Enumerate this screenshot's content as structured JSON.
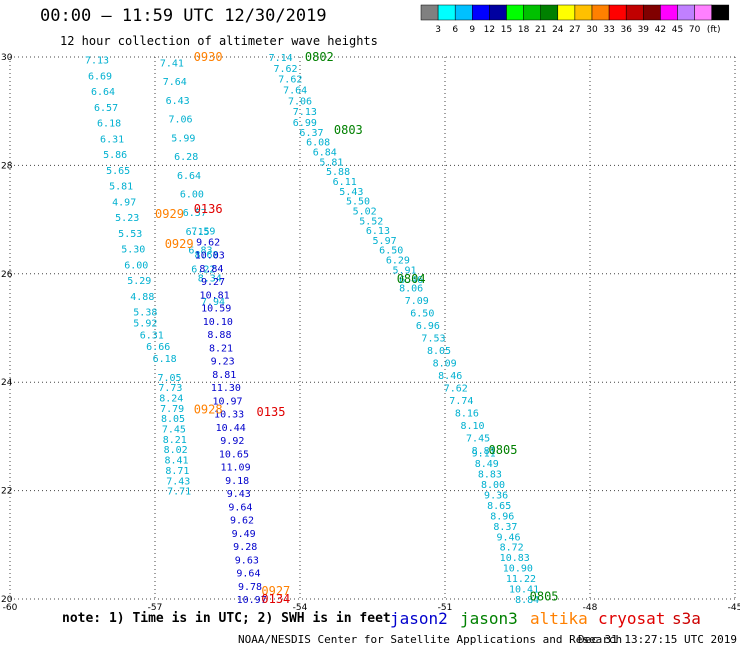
{
  "title": "00:00 – 11:59 UTC 12/30/2019",
  "subtitle": "12 hour collection of altimeter wave heights",
  "colorbar": {
    "colors": [
      "#808080",
      "#00ffff",
      "#00c0ff",
      "#0000ff",
      "#0000a0",
      "#00ff00",
      "#00c000",
      "#008000",
      "#ffff00",
      "#ffc000",
      "#ff8000",
      "#ff0000",
      "#c00000",
      "#800000",
      "#ff00ff",
      "#c080ff",
      "#ff80ff",
      "#000000"
    ],
    "labels": [
      "3",
      "6",
      "9",
      "12",
      "15",
      "18",
      "21",
      "24",
      "27",
      "30",
      "33",
      "36",
      "39",
      "42",
      "45",
      "70"
    ],
    "unit": "(ft)"
  },
  "note": "note: 1) Time is in UTC; 2) SWH is in feet",
  "legend": [
    {
      "name": "jason2",
      "color": "#0000cc"
    },
    {
      "name": "jason3",
      "color": "#008000"
    },
    {
      "name": "altika",
      "color": "#ff8000"
    },
    {
      "name": "cryosat",
      "color": "#e00000"
    },
    {
      "name": "s3a",
      "color": "#cc0000"
    }
  ],
  "credit": "NOAA/NESDIS Center for Satellite Applications and Research",
  "timestamp": "Dec 31 13:27:15 UTC 2019",
  "chart_data": {
    "type": "scatter",
    "xlim": [
      -60,
      -45
    ],
    "ylim": [
      20,
      30
    ],
    "xticks": [
      "-60",
      "-57",
      "-54",
      "-51",
      "-48",
      "-45"
    ],
    "yticks": [
      "20",
      "22",
      "24",
      "26",
      "28",
      "30"
    ],
    "grid": true,
    "time_labels": [
      {
        "x": -55.9,
        "y": 30.0,
        "text": "0930",
        "color": "#ff8000"
      },
      {
        "x": -56.7,
        "y": 27.1,
        "text": "0929",
        "color": "#ff8000"
      },
      {
        "x": -56.5,
        "y": 26.55,
        "text": "0929",
        "color": "#ff8000"
      },
      {
        "x": -55.9,
        "y": 23.5,
        "text": "0928",
        "color": "#ff8000"
      },
      {
        "x": -54.5,
        "y": 20.15,
        "text": "0927",
        "color": "#ff8000"
      },
      {
        "x": -55.9,
        "y": 27.2,
        "text": "0136",
        "color": "#e00000"
      },
      {
        "x": -54.6,
        "y": 23.45,
        "text": "0135",
        "color": "#e00000"
      },
      {
        "x": -54.5,
        "y": 20.0,
        "text": "0134",
        "color": "#e00000"
      },
      {
        "x": -53.6,
        "y": 30.0,
        "text": "0802",
        "color": "#008000"
      },
      {
        "x": -53.0,
        "y": 28.65,
        "text": "0803",
        "color": "#008000"
      },
      {
        "x": -51.7,
        "y": 25.9,
        "text": "0804",
        "color": "#008000"
      },
      {
        "x": -49.8,
        "y": 22.75,
        "text": "0805",
        "color": "#008000"
      },
      {
        "x": -48.95,
        "y": 20.05,
        "text": "0805",
        "color": "#008000"
      }
    ],
    "tracks": [
      {
        "x0": -58.2,
        "x1": -57.2,
        "y0": 29.95,
        "y1": 25.3,
        "color": "#00b0d0",
        "values": [
          "7.13",
          "6.69",
          "6.64",
          "6.57",
          "6.18",
          "6.31",
          "5.86",
          "5.65",
          "5.81",
          "4.97",
          "5.23",
          "5.53",
          "5.30",
          "6.00",
          "5.29",
          "4.88",
          "5.38"
        ]
      },
      {
        "x0": -57.2,
        "x1": -56.8,
        "y0": 25.1,
        "y1": 24.45,
        "color": "#00b0d0",
        "values": [
          "5.92",
          "6.31",
          "6.66",
          "6.18"
        ]
      },
      {
        "x0": -56.7,
        "x1": -56.5,
        "y0": 24.1,
        "y1": 22.0,
        "color": "#00b0d0",
        "values": [
          "7.05",
          "7.73",
          "8.24",
          "7.79",
          "8.05",
          "7.45",
          "8.21",
          "8.02",
          "8.41",
          "8.71",
          "7.43",
          "7.71"
        ]
      },
      {
        "x0": -56.65,
        "x1": -56.0,
        "y0": 29.9,
        "y1": 26.1,
        "color": "#00b0d0",
        "values": [
          "7.41",
          "7.64",
          "6.43",
          "7.06",
          "5.99",
          "6.28",
          "6.64",
          "6.00",
          "6.57",
          "6.15",
          "6.83",
          "6.22"
        ]
      },
      {
        "x0": -56.0,
        "x1": -55.8,
        "y0": 26.8,
        "y1": 25.5,
        "color": "#00b0d0",
        "values": [
          "7.59",
          "8.68",
          "8.34",
          "7.94"
        ]
      },
      {
        "x0": -55.9,
        "x1": -55.0,
        "y0": 26.6,
        "y1": 20.0,
        "color": "#0000cc",
        "values": [
          "9.62",
          "10.03",
          "8.84",
          "9.27",
          "10.81",
          "10.59",
          "10.10",
          "8.88",
          "8.21",
          "9.23",
          "8.81",
          "11.30",
          "10.97",
          "10.33",
          "10.44",
          "9.92",
          "10.65",
          "11.09",
          "9.18",
          "9.43",
          "9.64",
          "9.62",
          "9.49",
          "9.28",
          "9.63",
          "9.64",
          "9.78",
          "10.97"
        ]
      },
      {
        "x0": -54.4,
        "x1": -53.9,
        "y0": 30.0,
        "y1": 29.0,
        "color": "#00b0d0",
        "values": [
          "7.14",
          "7.62",
          "7.62",
          "7.64",
          "7.06",
          "7.13"
        ]
      },
      {
        "x0": -53.9,
        "x1": -51.7,
        "y0": 28.8,
        "y1": 25.9,
        "color": "#00b0d0",
        "values": [
          "6.99",
          "6.37",
          "6.08",
          "6.84",
          "5.81",
          "5.88",
          "6.11",
          "5.43",
          "5.50",
          "5.02",
          "5.52",
          "6.13",
          "5.97",
          "6.50",
          "6.29",
          "5.91",
          "6.46"
        ]
      },
      {
        "x0": -51.7,
        "x1": -50.2,
        "y0": 25.75,
        "y1": 22.75,
        "color": "#00b0d0",
        "values": [
          "8.06",
          "7.09",
          "6.50",
          "6.96",
          "7.53",
          "8.05",
          "8.09",
          "8.46",
          "7.62",
          "7.74",
          "8.16",
          "8.10",
          "7.45",
          "8.81"
        ]
      },
      {
        "x0": -50.2,
        "x1": -49.3,
        "y0": 22.7,
        "y1": 20.0,
        "color": "#00b0d0",
        "values": [
          "9.11",
          "8.49",
          "8.83",
          "8.00",
          "9.36",
          "8.65",
          "8.96",
          "8.37",
          "9.46",
          "8.72",
          "10.83",
          "10.90",
          "11.22",
          "10.41",
          "8.84"
        ]
      }
    ]
  }
}
